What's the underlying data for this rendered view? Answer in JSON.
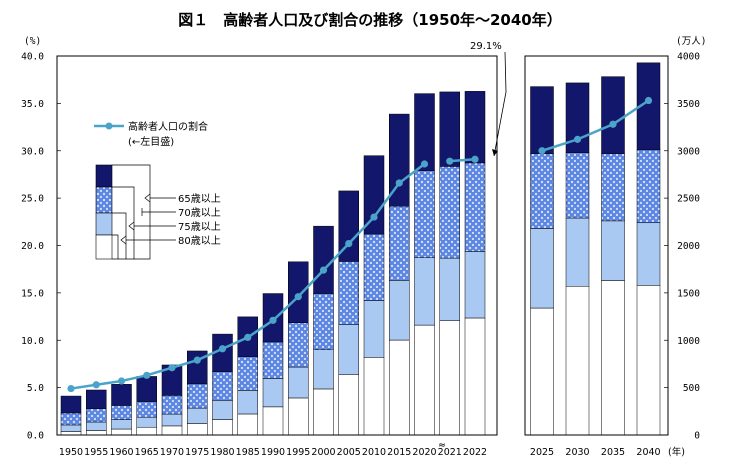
{
  "chart_data": {
    "type": "bar",
    "title": "図１　高齢者人口及び割合の推移（1950年～2040年）",
    "y_left_unit": "(%)",
    "y_right_unit": "(万人)",
    "x_unit": "(年)",
    "y_left_ticks": [
      "0.0",
      "5.0",
      "10.0",
      "15.0",
      "20.0",
      "25.0",
      "30.0",
      "35.0",
      "40.0"
    ],
    "y_right_ticks": [
      "0",
      "500",
      "1000",
      "1500",
      "2000",
      "2500",
      "3000",
      "3500",
      "4000"
    ],
    "ylim_left": [
      0,
      40
    ],
    "ylim_right": [
      0,
      4000
    ],
    "bar_legend_labels": [
      "65歳以上",
      "70歳以上",
      "75歳以上",
      "80歳以上"
    ],
    "line_legend_label": "高齢者人口の割合",
    "line_legend_sub": "(←左目盛)",
    "callout": "29.1%",
    "axis_break_symbol": "≈",
    "panels": [
      {
        "categories": [
          "1950",
          "1955",
          "1960",
          "1965",
          "1970",
          "1975",
          "1980",
          "1985",
          "1990",
          "1995",
          "2000",
          "2005",
          "2010",
          "2015",
          "2020",
          "2021",
          "2022"
        ],
        "series": [
          {
            "name": "80歳以上",
            "values": [
              37,
              47,
              63,
              82,
              96,
              122,
              163,
              222,
              297,
              391,
              486,
              636,
              820,
              1002,
              1160,
              1206,
              1235
            ]
          },
          {
            "name": "75歳以上",
            "values": [
              106,
              137,
              163,
              188,
              221,
              284,
              366,
              471,
              597,
              717,
              900,
              1164,
              1419,
              1632,
              1871,
              1867,
              1937
            ]
          },
          {
            "name": "70歳以上",
            "values": [
              233,
              278,
              312,
              353,
              418,
              540,
              668,
              827,
              982,
              1185,
              1493,
              1832,
              2121,
              2415,
              2791,
              2835,
              2872
            ]
          },
          {
            "name": "65歳以上",
            "values": [
              411,
              475,
              535,
              618,
              739,
              887,
              1065,
              1247,
              1493,
              1828,
              2204,
              2576,
              2948,
              3387,
              3603,
              3621,
              3627
            ]
          }
        ],
        "ratio": [
          4.9,
          5.3,
          5.7,
          6.3,
          7.1,
          7.9,
          9.1,
          10.3,
          12.1,
          14.6,
          17.4,
          20.2,
          23.0,
          26.6,
          28.6,
          28.9,
          29.1
        ]
      },
      {
        "categories": [
          "2025",
          "2030",
          "2035",
          "2040"
        ],
        "series": [
          {
            "name": "80歳以上",
            "values": [
              1340,
              1570,
              1630,
              1580
            ]
          },
          {
            "name": "75歳以上",
            "values": [
              2180,
              2290,
              2260,
              2240
            ]
          },
          {
            "name": "70歳以上",
            "values": [
              2970,
              2980,
              2970,
              3010
            ]
          },
          {
            "name": "65歳以上",
            "values": [
              3677,
              3716,
              3782,
              3928
            ]
          }
        ],
        "ratio": [
          30.0,
          31.2,
          32.8,
          35.3
        ]
      }
    ],
    "colors": {
      "c65": "#13176b",
      "c70": "#5b86e4",
      "c75": "#a9c9f3",
      "c80": "#ffffff",
      "line": "#4ba3c9",
      "frame": "#000000"
    }
  }
}
